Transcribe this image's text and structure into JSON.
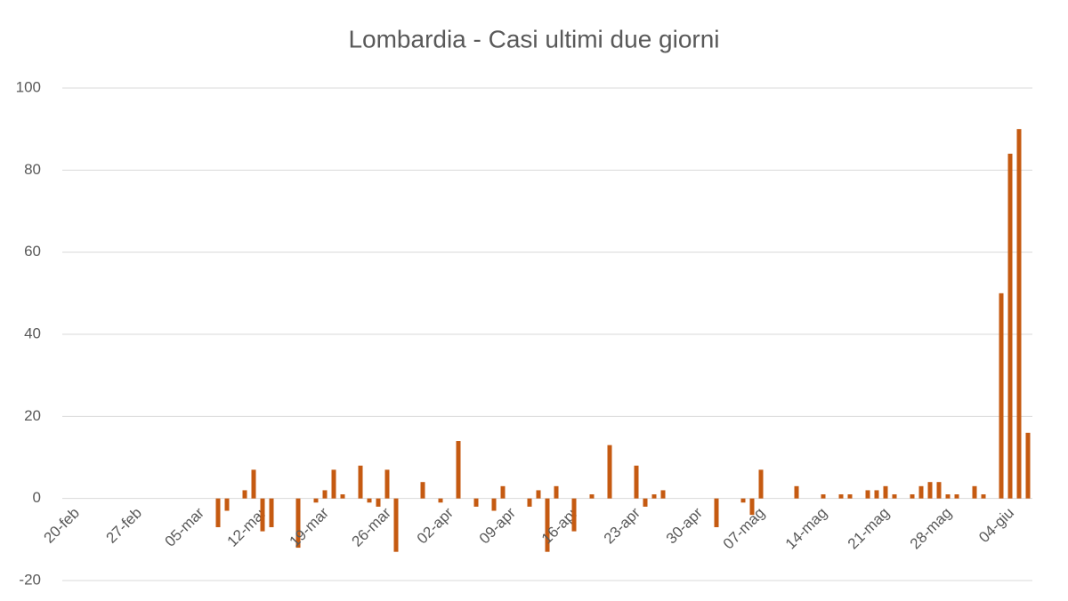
{
  "chart_data": {
    "type": "bar",
    "title": "Lombardia - Casi ultimi due giorni",
    "categories": [
      "20-feb",
      null,
      null,
      null,
      null,
      null,
      null,
      "27-feb",
      null,
      null,
      null,
      null,
      null,
      null,
      "05-mar",
      null,
      null,
      null,
      null,
      null,
      null,
      "12-mar",
      null,
      null,
      null,
      null,
      null,
      null,
      "19-mar",
      null,
      null,
      null,
      null,
      null,
      null,
      "26-mar",
      null,
      null,
      null,
      null,
      null,
      null,
      "02-apr",
      null,
      null,
      null,
      null,
      null,
      null,
      "09-apr",
      null,
      null,
      null,
      null,
      null,
      null,
      "16-apr",
      null,
      null,
      null,
      null,
      null,
      null,
      "23-apr",
      null,
      null,
      null,
      null,
      null,
      null,
      "30-apr",
      null,
      null,
      null,
      null,
      null,
      null,
      "07-mag",
      null,
      null,
      null,
      null,
      null,
      null,
      "14-mag",
      null,
      null,
      null,
      null,
      null,
      null,
      "21-mag",
      null,
      null,
      null,
      null,
      null,
      null,
      "28-mag",
      null,
      null,
      null,
      null,
      null,
      null,
      "04-giu",
      null,
      null,
      null
    ],
    "values": [
      0,
      0,
      0,
      0,
      0,
      0,
      0,
      0,
      0,
      0,
      0,
      0,
      0,
      0,
      0,
      0,
      0,
      -7,
      -3,
      0,
      2,
      7,
      -8,
      -7,
      0,
      0,
      -12,
      0,
      -1,
      2,
      7,
      1,
      0,
      8,
      -1,
      -2,
      7,
      -13,
      0,
      0,
      4,
      0,
      -1,
      0,
      14,
      0,
      -2,
      0,
      -3,
      3,
      0,
      0,
      -2,
      2,
      -13,
      3,
      0,
      -8,
      0,
      1,
      0,
      13,
      0,
      0,
      8,
      -2,
      1,
      2,
      0,
      0,
      0,
      0,
      0,
      -7,
      0,
      0,
      -1,
      -4,
      7,
      0,
      0,
      0,
      3,
      0,
      0,
      1,
      0,
      1,
      1,
      0,
      2,
      2,
      3,
      1,
      0,
      1,
      3,
      4,
      4,
      1,
      1,
      0,
      3,
      1,
      0,
      50,
      84,
      90,
      16
    ],
    "color": "#c55a11",
    "ylim": [
      -20,
      100
    ],
    "yticks": [
      -20,
      0,
      20,
      40,
      60,
      80,
      100
    ],
    "grid": true
  }
}
